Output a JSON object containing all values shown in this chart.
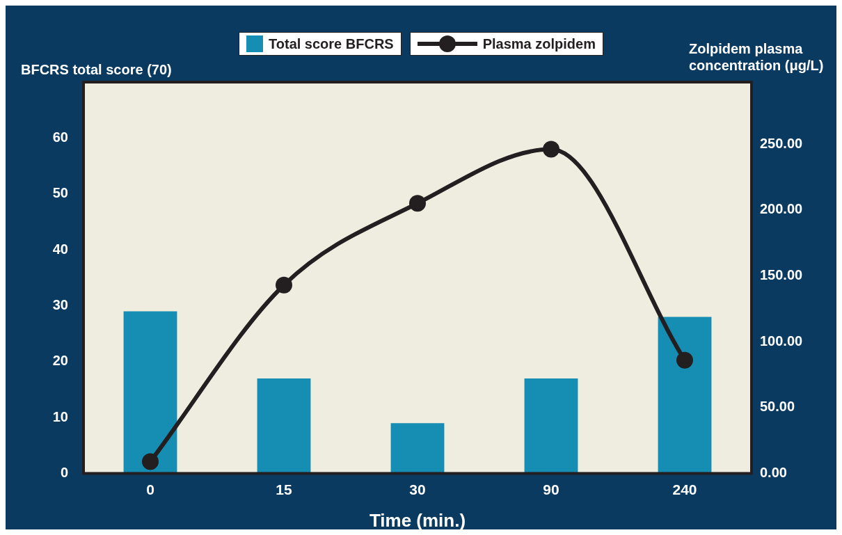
{
  "chart_data": {
    "type": "bar",
    "xlabel": "Time (min.)",
    "ylabel": "BFCRS total score (70)",
    "y2label": "Zolpidem plasma concentration (μg/L)",
    "categories": [
      "0",
      "15",
      "30",
      "90",
      "240"
    ],
    "series": [
      {
        "name": "Total score BFCRS",
        "color": "#168db3",
        "values": [
          29,
          17,
          9,
          17,
          28
        ]
      },
      {
        "name": "Plasma zolpidem",
        "type": "line",
        "axis": "y2",
        "color": "#231f20",
        "values": [
          9,
          143,
          205,
          246,
          86
        ]
      }
    ],
    "ylim": [
      0,
      70
    ],
    "yticks": [
      0,
      10,
      20,
      30,
      40,
      50,
      60
    ],
    "y2lim": [
      0,
      297
    ],
    "y2ticks": [
      {
        "value": 0,
        "label": "0.00"
      },
      {
        "value": 50,
        "label": "50.00"
      },
      {
        "value": 100,
        "label": "100.00"
      },
      {
        "value": 150,
        "label": "150.00"
      },
      {
        "value": 200,
        "label": "200.00"
      },
      {
        "value": 250,
        "label": "250.00"
      }
    ],
    "legend": "top",
    "marker": "circle",
    "line_style": "solid"
  }
}
